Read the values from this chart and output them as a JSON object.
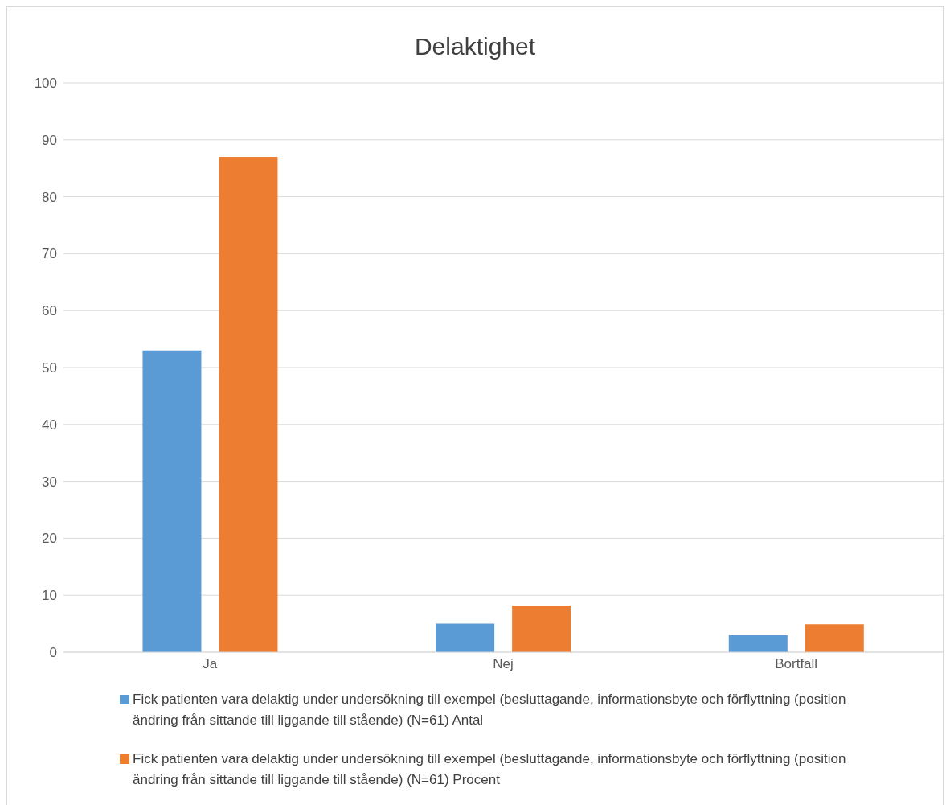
{
  "chart_data": {
    "type": "bar",
    "title": "Delaktighet",
    "categories": [
      "Ja",
      "Nej",
      "Bortfall"
    ],
    "series": [
      {
        "name": "Fick patienten vara delaktig under undersökning till exempel (besluttagande, informationsbyte och förflyttning (position ändring från sittande till liggande till stående) (N=61) Antal",
        "color": "#5b9bd5",
        "values": [
          53,
          5,
          3
        ]
      },
      {
        "name": "Fick patienten vara delaktig under undersökning till exempel (besluttagande, informationsbyte och förflyttning (position ändring från sittande till liggande till stående) (N=61) Procent",
        "color": "#ed7d31",
        "values": [
          87,
          8.2,
          4.9
        ]
      }
    ],
    "ylim": [
      0,
      100
    ],
    "yticks": [
      0,
      10,
      20,
      30,
      40,
      50,
      60,
      70,
      80,
      90,
      100
    ],
    "grid": "y",
    "legend": "bottom"
  }
}
